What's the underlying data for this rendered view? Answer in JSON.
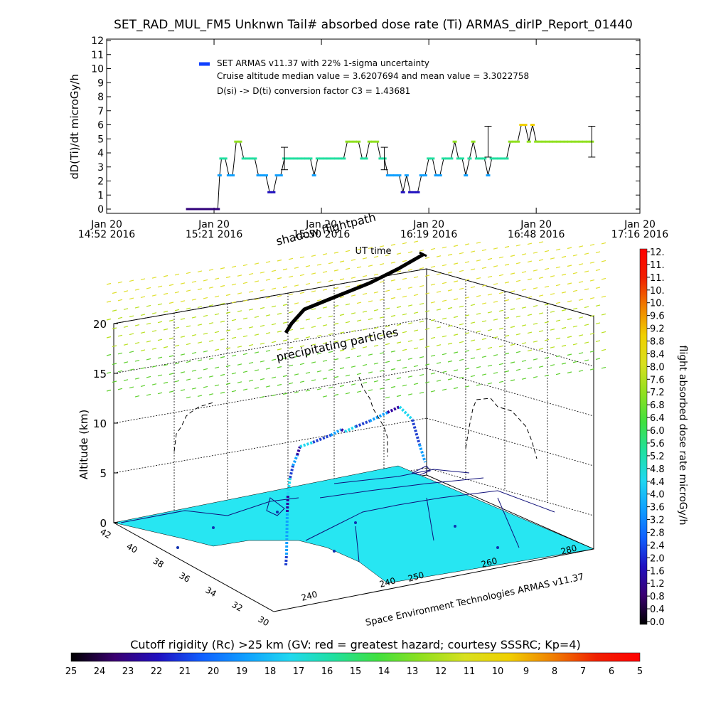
{
  "title": "SET_RAD_MUL_FM5 Unknwn Tail#  absorbed dose rate (Ti) ARMAS_dirIP_Report_01440",
  "chart_data": [
    {
      "type": "line",
      "ylabel": "dD(Ti)/dt microGy/h",
      "xlabel": "UT time",
      "ylim": [
        0,
        12
      ],
      "y_ticks": [
        "0",
        "1",
        "2",
        "3",
        "4",
        "5",
        "6",
        "7",
        "8",
        "9",
        "10",
        "11",
        "12"
      ],
      "x_ticks": [
        {
          "line1": "Jan 20",
          "line2": "14:52 2016"
        },
        {
          "line1": "Jan 20",
          "line2": "15:21 2016"
        },
        {
          "line1": "Jan 20",
          "line2": "15:50 2016"
        },
        {
          "line1": "Jan 20",
          "line2": "16:19 2016"
        },
        {
          "line1": "Jan 20",
          "line2": "16:48 2016"
        },
        {
          "line1": "Jan 20",
          "line2": "17:16 2016"
        }
      ],
      "x_tick_minutes": [
        0,
        29,
        58,
        87,
        116,
        144
      ],
      "legend_text": [
        "SET ARMAS v11.37 with 22% 1-sigma uncertainty",
        "Cruise altitude median value = 3.6207694 and mean value = 3.3022758",
        "D(si) -> D(ti) conversion factor C3 = 1.43681"
      ],
      "series": [
        {
          "x_minutes": [
            22,
            23,
            24,
            25,
            26,
            27,
            28,
            29,
            30,
            30.5,
            31,
            32,
            33,
            34,
            35,
            36,
            37,
            38,
            39,
            40,
            41,
            42,
            43,
            44,
            45,
            46,
            47,
            48,
            49,
            50,
            51,
            52,
            53,
            54,
            55,
            56,
            57,
            58,
            59,
            60,
            61,
            62,
            63,
            64,
            65,
            66,
            67,
            68,
            69,
            70,
            71,
            72,
            73,
            74,
            75,
            76,
            77,
            78,
            79,
            80,
            81,
            82,
            83,
            84,
            85,
            86,
            87,
            88,
            89,
            90,
            91,
            92,
            93,
            94,
            95,
            96,
            97,
            98,
            99,
            100,
            101,
            102,
            103,
            104,
            105,
            106,
            107,
            108,
            109,
            110,
            111,
            112,
            113,
            114,
            115,
            116,
            117,
            118,
            119,
            120,
            121,
            122,
            123,
            124,
            125,
            126,
            127,
            128,
            129,
            130,
            131
          ],
          "y": [
            0,
            0,
            0,
            0,
            0,
            0,
            0,
            0,
            0,
            2.4,
            3.6,
            3.6,
            2.4,
            2.4,
            4.8,
            4.8,
            3.6,
            3.6,
            3.6,
            3.6,
            2.4,
            2.4,
            2.4,
            1.2,
            1.2,
            2.4,
            2.4,
            3.6,
            3.6,
            3.6,
            3.6,
            3.6,
            3.6,
            3.6,
            3.6,
            2.4,
            3.6,
            3.6,
            3.6,
            3.6,
            3.6,
            3.6,
            3.6,
            3.6,
            4.8,
            4.8,
            4.8,
            4.8,
            3.6,
            3.6,
            4.8,
            4.8,
            4.8,
            3.6,
            3.6,
            2.4,
            2.4,
            2.4,
            2.4,
            1.2,
            2.4,
            1.2,
            1.2,
            1.2,
            2.4,
            2.4,
            3.6,
            3.6,
            2.4,
            2.4,
            3.6,
            3.6,
            3.6,
            4.8,
            3.6,
            3.6,
            2.4,
            3.6,
            4.8,
            3.6,
            3.6,
            3.6,
            2.4,
            3.6,
            3.6,
            3.6,
            3.6,
            3.6,
            4.8,
            4.8,
            4.8,
            6.0,
            6.0,
            4.8,
            6.0,
            4.8,
            4.8,
            4.8,
            4.8,
            4.8,
            4.8,
            4.8,
            4.8,
            4.8,
            4.8,
            4.8,
            4.8,
            4.8,
            4.8,
            4.8,
            4.8
          ]
        }
      ],
      "error_bars": [
        {
          "x_minutes": 48,
          "y": 3.6,
          "lo": 2.8,
          "hi": 4.4
        },
        {
          "x_minutes": 75,
          "y": 3.6,
          "lo": 2.8,
          "hi": 4.4
        },
        {
          "x_minutes": 103,
          "y": 4.8,
          "lo": 3.7,
          "hi": 5.9
        },
        {
          "x_minutes": 131,
          "y": 4.8,
          "lo": 3.7,
          "hi": 5.9
        }
      ]
    },
    {
      "type": "scatter",
      "zlabel": "Altitude (km)",
      "z_ticks": [
        "0",
        "5",
        "10",
        "15",
        "20"
      ],
      "lat_ticks": [
        "42",
        "40",
        "38",
        "36",
        "34",
        "32",
        "30"
      ],
      "lon_ticks": [
        "240",
        "240",
        "250",
        "260",
        "280"
      ],
      "annotations": [
        "shadow flightpath",
        "precipitating particles",
        "Space Environment Technologies ARMAS v11.37"
      ]
    },
    {
      "type": "colorbar",
      "label": "flight absorbed dose rate microGy/h",
      "ticks": [
        "12.",
        "11.",
        "11.",
        "10.",
        "10.",
        "9.6",
        "9.2",
        "8.8",
        "8.4",
        "8.0",
        "7.6",
        "7.2",
        "6.8",
        "6.4",
        "6.0",
        "5.6",
        "5.2",
        "4.8",
        "4.4",
        "4.0",
        "3.6",
        "3.2",
        "2.8",
        "2.4",
        "2.0",
        "1.6",
        "1.2",
        "0.8",
        "0.4",
        "0.0"
      ]
    },
    {
      "type": "colorbar",
      "label": "Cutoff rigidity (Rc) >25 km (GV: red = greatest hazard; courtesy SSSRC; Kp=4)",
      "ticks": [
        "25",
        "24",
        "23",
        "22",
        "21",
        "20",
        "19",
        "18",
        "17",
        "16",
        "15",
        "14",
        "13",
        "12",
        "11",
        "10",
        "9",
        "8",
        "7",
        "6",
        "5"
      ]
    }
  ],
  "colors": {
    "cyan_map": "#27e6f2",
    "rainbow": [
      "#000000",
      "#3a0070",
      "#2010c0",
      "#1060ff",
      "#10a0ff",
      "#20d8f0",
      "#20e0a0",
      "#40e040",
      "#90e020",
      "#d8e020",
      "#f0d000",
      "#f08000",
      "#f02000",
      "#ff0000"
    ]
  }
}
